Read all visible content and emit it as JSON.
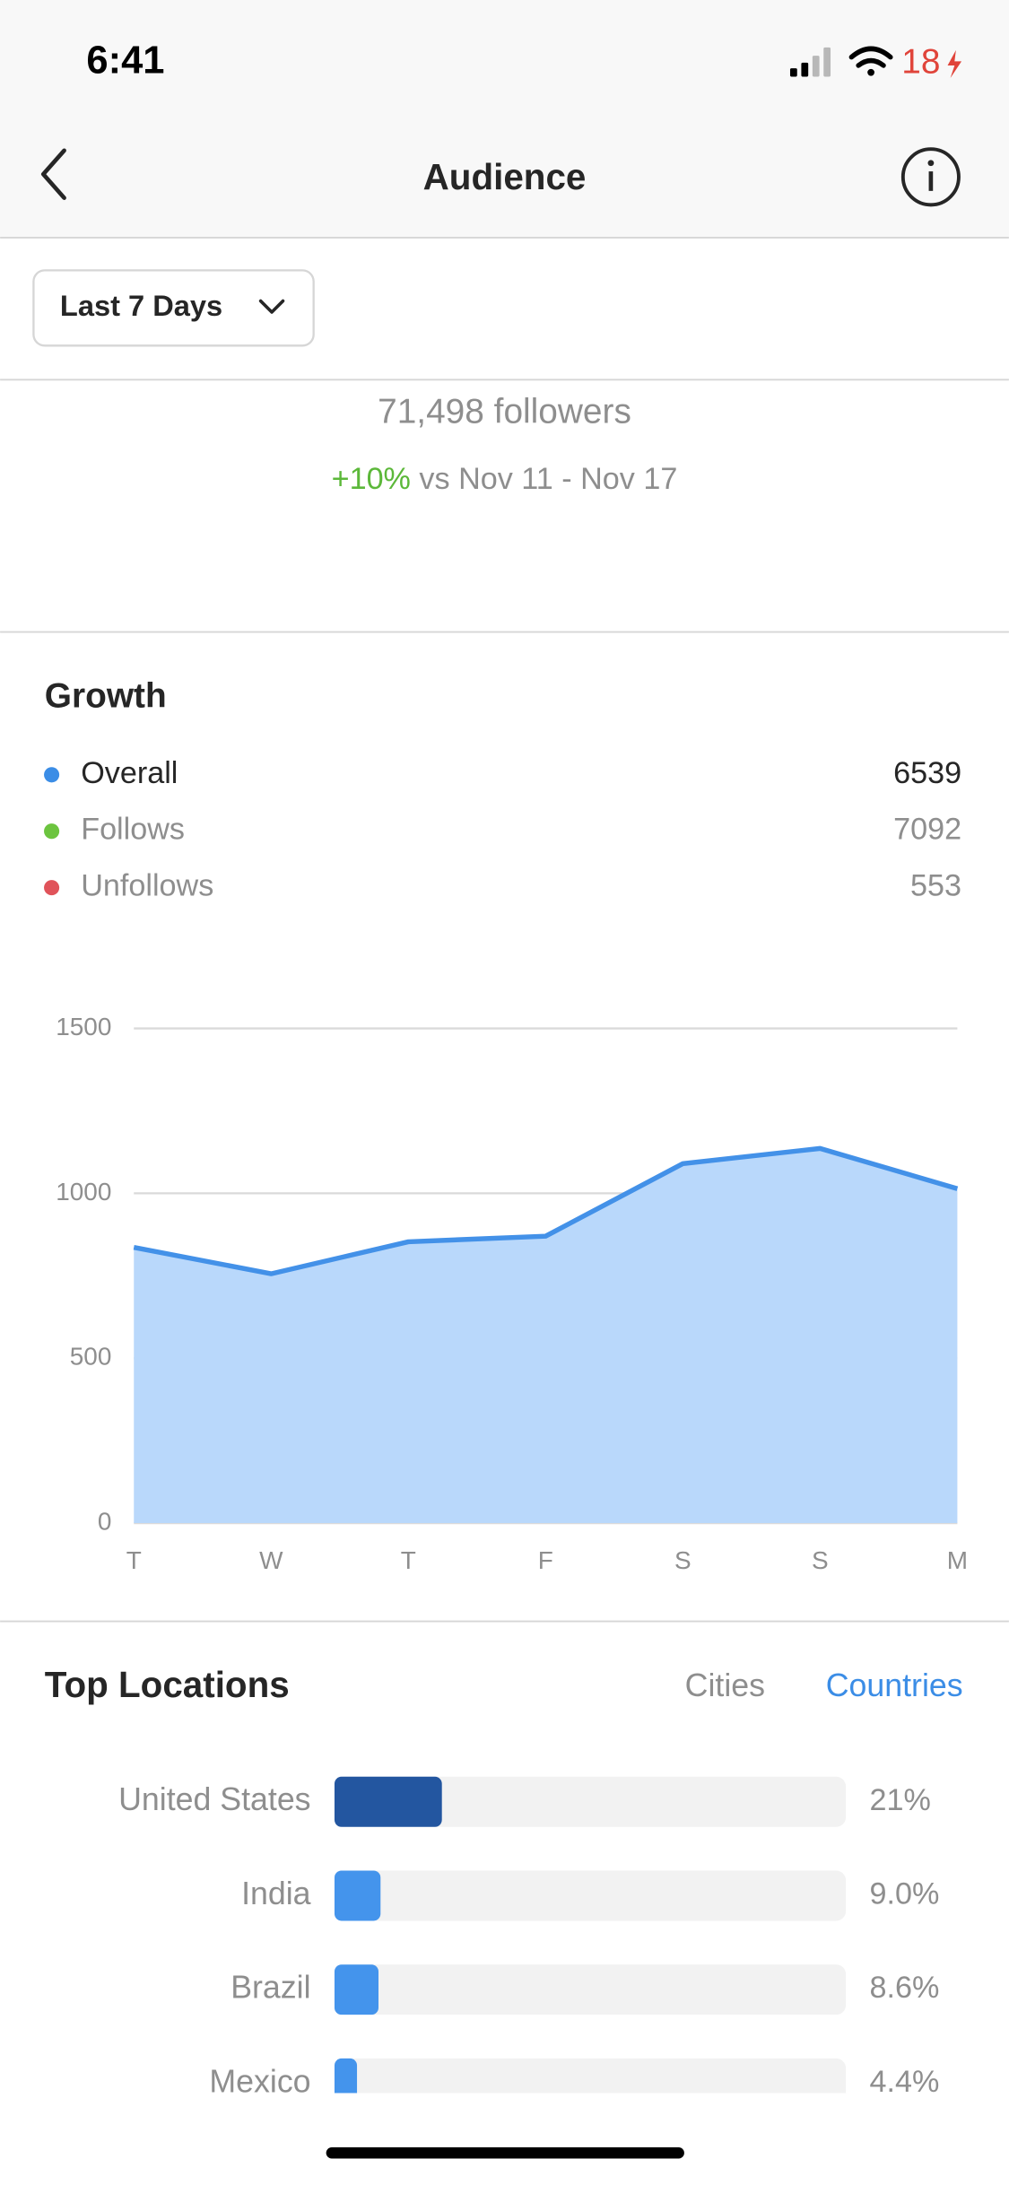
{
  "status_bar": {
    "time": "6:41",
    "battery": "18"
  },
  "header": {
    "title": "Audience"
  },
  "filter": {
    "label": "Last 7 Days"
  },
  "summary": {
    "followers": "71,498 followers",
    "change": "+10%",
    "comparison": "vs Nov 11 - Nov 17"
  },
  "growth": {
    "title": "Growth",
    "legend": [
      {
        "name": "Overall",
        "color": "#3b8de6",
        "value": 6539
      },
      {
        "name": "Follows",
        "color": "#6cc43f",
        "value": 7092
      },
      {
        "name": "Unfollows",
        "color": "#e0535a",
        "value": 553
      }
    ]
  },
  "chart_data": {
    "type": "area",
    "categories": [
      "T",
      "W",
      "T",
      "F",
      "S",
      "S",
      "M"
    ],
    "values": [
      836,
      756,
      853,
      870,
      1090,
      1136,
      1014
    ],
    "color": "#4391e8",
    "fill_color": "#b9d8fb",
    "ylim": [
      0,
      1500
    ],
    "yticks": [
      0,
      500,
      1000,
      1500
    ],
    "grid": true
  },
  "top_locations": {
    "title": "Top Locations",
    "tabs": [
      "Cities",
      "Countries"
    ],
    "active_tab": 1,
    "chart_data": {
      "type": "bar",
      "categories": [
        "United States",
        "India",
        "Brazil",
        "Mexico"
      ],
      "values": [
        21,
        9.0,
        8.6,
        4.4
      ],
      "value_labels": [
        "21%",
        "9.0%",
        "8.6%",
        "4.4%"
      ],
      "colors": [
        "#2356a0",
        "#4494ec",
        "#4494ec",
        "#4494ec"
      ],
      "xlim": [
        0,
        100
      ]
    }
  }
}
